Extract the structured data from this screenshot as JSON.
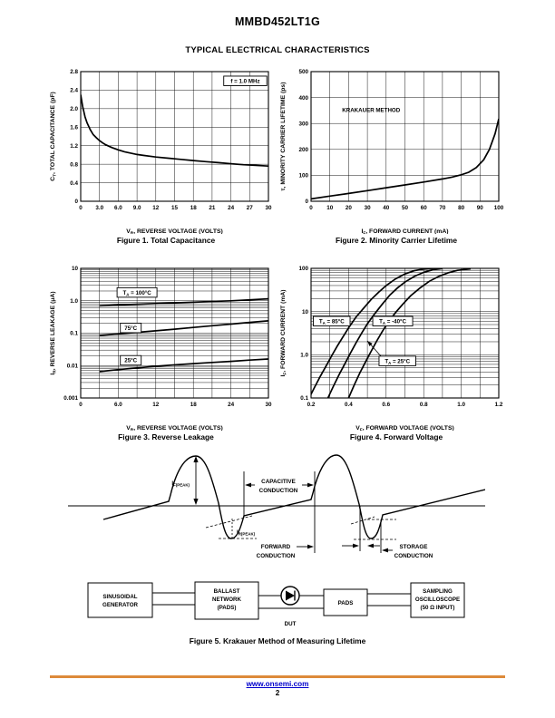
{
  "page": {
    "title": "MMBD452LT1G",
    "subtitle": "TYPICAL ELECTRICAL CHARACTERISTICS"
  },
  "footer": {
    "rule_color": "#dd8a3a",
    "link": "www.onsemi.com",
    "link_color": "#0000cc",
    "page_number": "2"
  },
  "chart_data": [
    {
      "type": "line",
      "caption": "Figure 1. Total Capacitance",
      "xlabel": "V~R~, REVERSE VOLTAGE (VOLTS)",
      "ylabel": "C~T~, TOTAL CAPACITANCE (pF)",
      "x": {
        "scale": "linear",
        "min": 0,
        "max": 30,
        "grid_step": 3,
        "ticks": [
          [
            0,
            "0"
          ],
          [
            3,
            "3.0"
          ],
          [
            6,
            "6.0"
          ],
          [
            9,
            "9.0"
          ],
          [
            12,
            "12"
          ],
          [
            15,
            "15"
          ],
          [
            18,
            "18"
          ],
          [
            21,
            "21"
          ],
          [
            24,
            "24"
          ],
          [
            27,
            "27"
          ],
          [
            30,
            "30"
          ]
        ]
      },
      "y": {
        "scale": "linear",
        "min": 0,
        "max": 2.8,
        "grid_step": 0.4,
        "ticks": [
          [
            0,
            "0"
          ],
          [
            0.4,
            "0.4"
          ],
          [
            0.8,
            "0.8"
          ],
          [
            1.2,
            "1.2"
          ],
          [
            1.6,
            "1.6"
          ],
          [
            2.0,
            "2.0"
          ],
          [
            2.4,
            "2.4"
          ],
          [
            2.8,
            "2.8"
          ]
        ]
      },
      "series": [
        {
          "name": "total capacitance, f = 1.0 MHz",
          "points": [
            [
              0,
              2.3
            ],
            [
              0.3,
              2.05
            ],
            [
              0.7,
              1.82
            ],
            [
              1,
              1.7
            ],
            [
              1.5,
              1.55
            ],
            [
              2,
              1.44
            ],
            [
              2.5,
              1.37
            ],
            [
              3,
              1.31
            ],
            [
              3.5,
              1.26
            ],
            [
              4,
              1.22
            ],
            [
              5,
              1.16
            ],
            [
              6,
              1.11
            ],
            [
              7,
              1.07
            ],
            [
              8,
              1.04
            ],
            [
              9,
              1.01
            ],
            [
              10,
              0.99
            ],
            [
              12,
              0.955
            ],
            [
              14,
              0.93
            ],
            [
              16,
              0.905
            ],
            [
              18,
              0.88
            ],
            [
              20,
              0.855
            ],
            [
              22,
              0.835
            ],
            [
              24,
              0.81
            ],
            [
              26,
              0.79
            ],
            [
              28,
              0.775
            ],
            [
              30,
              0.76
            ]
          ]
        }
      ],
      "annotations": [
        {
          "text": "f = 1.0 MHz",
          "x": 26.3,
          "y": 2.6,
          "box": true
        }
      ]
    },
    {
      "type": "line",
      "caption": "Figure 2. Minority Carrier Lifetime",
      "xlabel": "I~F~, FORWARD CURRENT (mA)",
      "ylabel": "τ, MINORITY CARRIER LIFETIME (ps)",
      "x": {
        "scale": "linear",
        "min": 0,
        "max": 100,
        "grid_step": 10,
        "ticks": [
          [
            0,
            "0"
          ],
          [
            10,
            "10"
          ],
          [
            20,
            "20"
          ],
          [
            30,
            "30"
          ],
          [
            40,
            "40"
          ],
          [
            50,
            "50"
          ],
          [
            60,
            "60"
          ],
          [
            70,
            "70"
          ],
          [
            80,
            "80"
          ],
          [
            90,
            "90"
          ],
          [
            100,
            "100"
          ]
        ]
      },
      "y": {
        "scale": "linear",
        "min": 0,
        "max": 500,
        "grid_step": 100,
        "ticks": [
          [
            0,
            "0"
          ],
          [
            100,
            "100"
          ],
          [
            200,
            "200"
          ],
          [
            300,
            "300"
          ],
          [
            400,
            "400"
          ],
          [
            500,
            "500"
          ]
        ]
      },
      "series": [
        {
          "name": "minority carrier lifetime (Krakauer method)",
          "points": [
            [
              0,
              9
            ],
            [
              10,
              20
            ],
            [
              20,
              30
            ],
            [
              30,
              41
            ],
            [
              40,
              52
            ],
            [
              50,
              63
            ],
            [
              60,
              74
            ],
            [
              70,
              86
            ],
            [
              75,
              93
            ],
            [
              80,
              102
            ],
            [
              84,
              112
            ],
            [
              88,
              130
            ],
            [
              92,
              160
            ],
            [
              95,
              200
            ],
            [
              98,
              260
            ],
            [
              100,
              318
            ]
          ]
        }
      ],
      "annotations": [
        {
          "text": "KRAKAUER METHOD",
          "x": 32,
          "y": 352,
          "box": false
        }
      ]
    },
    {
      "type": "line",
      "caption": "Figure 3. Reverse Leakage",
      "xlabel": "V~R~, REVERSE VOLTAGE (VOLTS)",
      "ylabel": "I~R~, REVERSE LEAKAGE (μA)",
      "x": {
        "scale": "linear",
        "min": 0,
        "max": 30,
        "grid_step": 3,
        "ticks": [
          [
            0,
            "0"
          ],
          [
            6,
            "6.0"
          ],
          [
            12,
            "12"
          ],
          [
            18,
            "18"
          ],
          [
            24,
            "24"
          ],
          [
            30,
            "30"
          ]
        ]
      },
      "y": {
        "scale": "log",
        "min": 0.001,
        "max": 10,
        "ticks": [
          [
            0.001,
            "0.001"
          ],
          [
            0.01,
            "0.01"
          ],
          [
            0.1,
            "0.1"
          ],
          [
            1,
            "1.0"
          ],
          [
            10,
            "10"
          ]
        ]
      },
      "series": [
        {
          "name": "TA = 100°C",
          "points": [
            [
              3,
              0.7
            ],
            [
              6,
              0.74
            ],
            [
              9,
              0.78
            ],
            [
              12,
              0.82
            ],
            [
              15,
              0.86
            ],
            [
              18,
              0.9
            ],
            [
              21,
              0.95
            ],
            [
              24,
              1.0
            ],
            [
              27,
              1.07
            ],
            [
              30,
              1.15
            ]
          ]
        },
        {
          "name": "TA = 75°C",
          "points": [
            [
              3,
              0.085
            ],
            [
              6,
              0.095
            ],
            [
              9,
              0.106
            ],
            [
              12,
              0.118
            ],
            [
              15,
              0.133
            ],
            [
              18,
              0.15
            ],
            [
              21,
              0.17
            ],
            [
              24,
              0.19
            ],
            [
              27,
              0.215
            ],
            [
              30,
              0.24
            ]
          ]
        },
        {
          "name": "TA = 25°C",
          "points": [
            [
              3,
              0.0065
            ],
            [
              6,
              0.0075
            ],
            [
              9,
              0.0085
            ],
            [
              12,
              0.0095
            ],
            [
              15,
              0.0105
            ],
            [
              18,
              0.0115
            ],
            [
              21,
              0.0125
            ],
            [
              24,
              0.0135
            ],
            [
              27,
              0.0148
            ],
            [
              30,
              0.016
            ]
          ]
        }
      ],
      "annotations": [
        {
          "text": "T~A~ = 100°C",
          "x": 9,
          "y": 1.8,
          "box": true
        },
        {
          "text": "75°C",
          "x": 8,
          "y": 0.145,
          "box": true
        },
        {
          "text": "25°C",
          "x": 8,
          "y": 0.0145,
          "box": true
        }
      ]
    },
    {
      "type": "line",
      "caption": "Figure 4. Forward Voltage",
      "xlabel": "V~F~, FORWARD VOLTAGE (VOLTS)",
      "ylabel": "I~F~, FORWARD CURRENT (mA)",
      "x": {
        "scale": "linear",
        "min": 0.2,
        "max": 1.2,
        "grid_step": 0.1,
        "ticks": [
          [
            0.2,
            "0.2"
          ],
          [
            0.4,
            "0.4"
          ],
          [
            0.6,
            "0.6"
          ],
          [
            0.8,
            "0.8"
          ],
          [
            1.0,
            "1.0"
          ],
          [
            1.2,
            "1.2"
          ]
        ]
      },
      "y": {
        "scale": "log",
        "min": 0.1,
        "max": 100,
        "ticks": [
          [
            0.1,
            "0.1"
          ],
          [
            1,
            "1.0"
          ],
          [
            10,
            "10"
          ],
          [
            100,
            "100"
          ]
        ]
      },
      "series": [
        {
          "name": "TA = 85°C",
          "points": [
            [
              0.19,
              0.1
            ],
            [
              0.22,
              0.18
            ],
            [
              0.25,
              0.32
            ],
            [
              0.28,
              0.55
            ],
            [
              0.31,
              0.95
            ],
            [
              0.34,
              1.6
            ],
            [
              0.37,
              2.6
            ],
            [
              0.4,
              4.2
            ],
            [
              0.44,
              7.5
            ],
            [
              0.48,
              12
            ],
            [
              0.52,
              19
            ],
            [
              0.56,
              28
            ],
            [
              0.6,
              40
            ],
            [
              0.65,
              57
            ],
            [
              0.7,
              74
            ],
            [
              0.75,
              88
            ],
            [
              0.8,
              96
            ],
            [
              0.85,
              99.5
            ]
          ]
        },
        {
          "name": "TA = 25°C",
          "points": [
            [
              0.29,
              0.1
            ],
            [
              0.32,
              0.19
            ],
            [
              0.35,
              0.35
            ],
            [
              0.38,
              0.62
            ],
            [
              0.41,
              1.1
            ],
            [
              0.44,
              1.9
            ],
            [
              0.47,
              3.2
            ],
            [
              0.5,
              5.2
            ],
            [
              0.54,
              9
            ],
            [
              0.58,
              15
            ],
            [
              0.62,
              24
            ],
            [
              0.66,
              35
            ],
            [
              0.7,
              48
            ],
            [
              0.75,
              65
            ],
            [
              0.8,
              81
            ],
            [
              0.85,
              93
            ],
            [
              0.9,
              99.5
            ]
          ]
        },
        {
          "name": "TA = -40°C",
          "points": [
            [
              0.4,
              0.1
            ],
            [
              0.43,
              0.2
            ],
            [
              0.46,
              0.38
            ],
            [
              0.49,
              0.68
            ],
            [
              0.52,
              1.2
            ],
            [
              0.55,
              2.1
            ],
            [
              0.58,
              3.5
            ],
            [
              0.61,
              5.6
            ],
            [
              0.65,
              9.5
            ],
            [
              0.69,
              15
            ],
            [
              0.73,
              23
            ],
            [
              0.78,
              35
            ],
            [
              0.83,
              50
            ],
            [
              0.88,
              65
            ],
            [
              0.93,
              79
            ],
            [
              0.98,
              90
            ],
            [
              1.05,
              97.5
            ]
          ]
        }
      ],
      "annotations": [
        {
          "text": "T~A~ = 85°C",
          "x": 0.31,
          "y": 6,
          "box": true
        },
        {
          "text": "T~A~ = -40°C",
          "x": 0.635,
          "y": 6,
          "box": true
        },
        {
          "text": "T~A~ = 25°C",
          "x": 0.66,
          "y": 0.72,
          "box": true,
          "arrow_to": [
            0.5,
            2.1
          ]
        }
      ]
    }
  ],
  "fig5": {
    "caption": "Figure 5. Krakauer Method of Measuring Lifetime",
    "waveform_labels": {
      "if_peak": "I~F(PEAK)~",
      "ir_peak": "I~R(PEAK)~",
      "capacitive": [
        "CAPACITIVE",
        "CONDUCTION"
      ],
      "forward": [
        "FORWARD",
        "CONDUCTION"
      ],
      "storage": [
        "STORAGE",
        "CONDUCTION"
      ]
    },
    "blocks": [
      {
        "lines": [
          "SINUSOIDAL",
          "GENERATOR"
        ]
      },
      {
        "lines": [
          "BALLAST",
          "NETWORK",
          "(PADS)"
        ]
      },
      {
        "lines": [
          "PADS"
        ]
      },
      {
        "lines": [
          "SAMPLING",
          "OSCILLOSCOPE",
          "(50 Ω INPUT)"
        ]
      }
    ],
    "dut_label": "DUT"
  }
}
